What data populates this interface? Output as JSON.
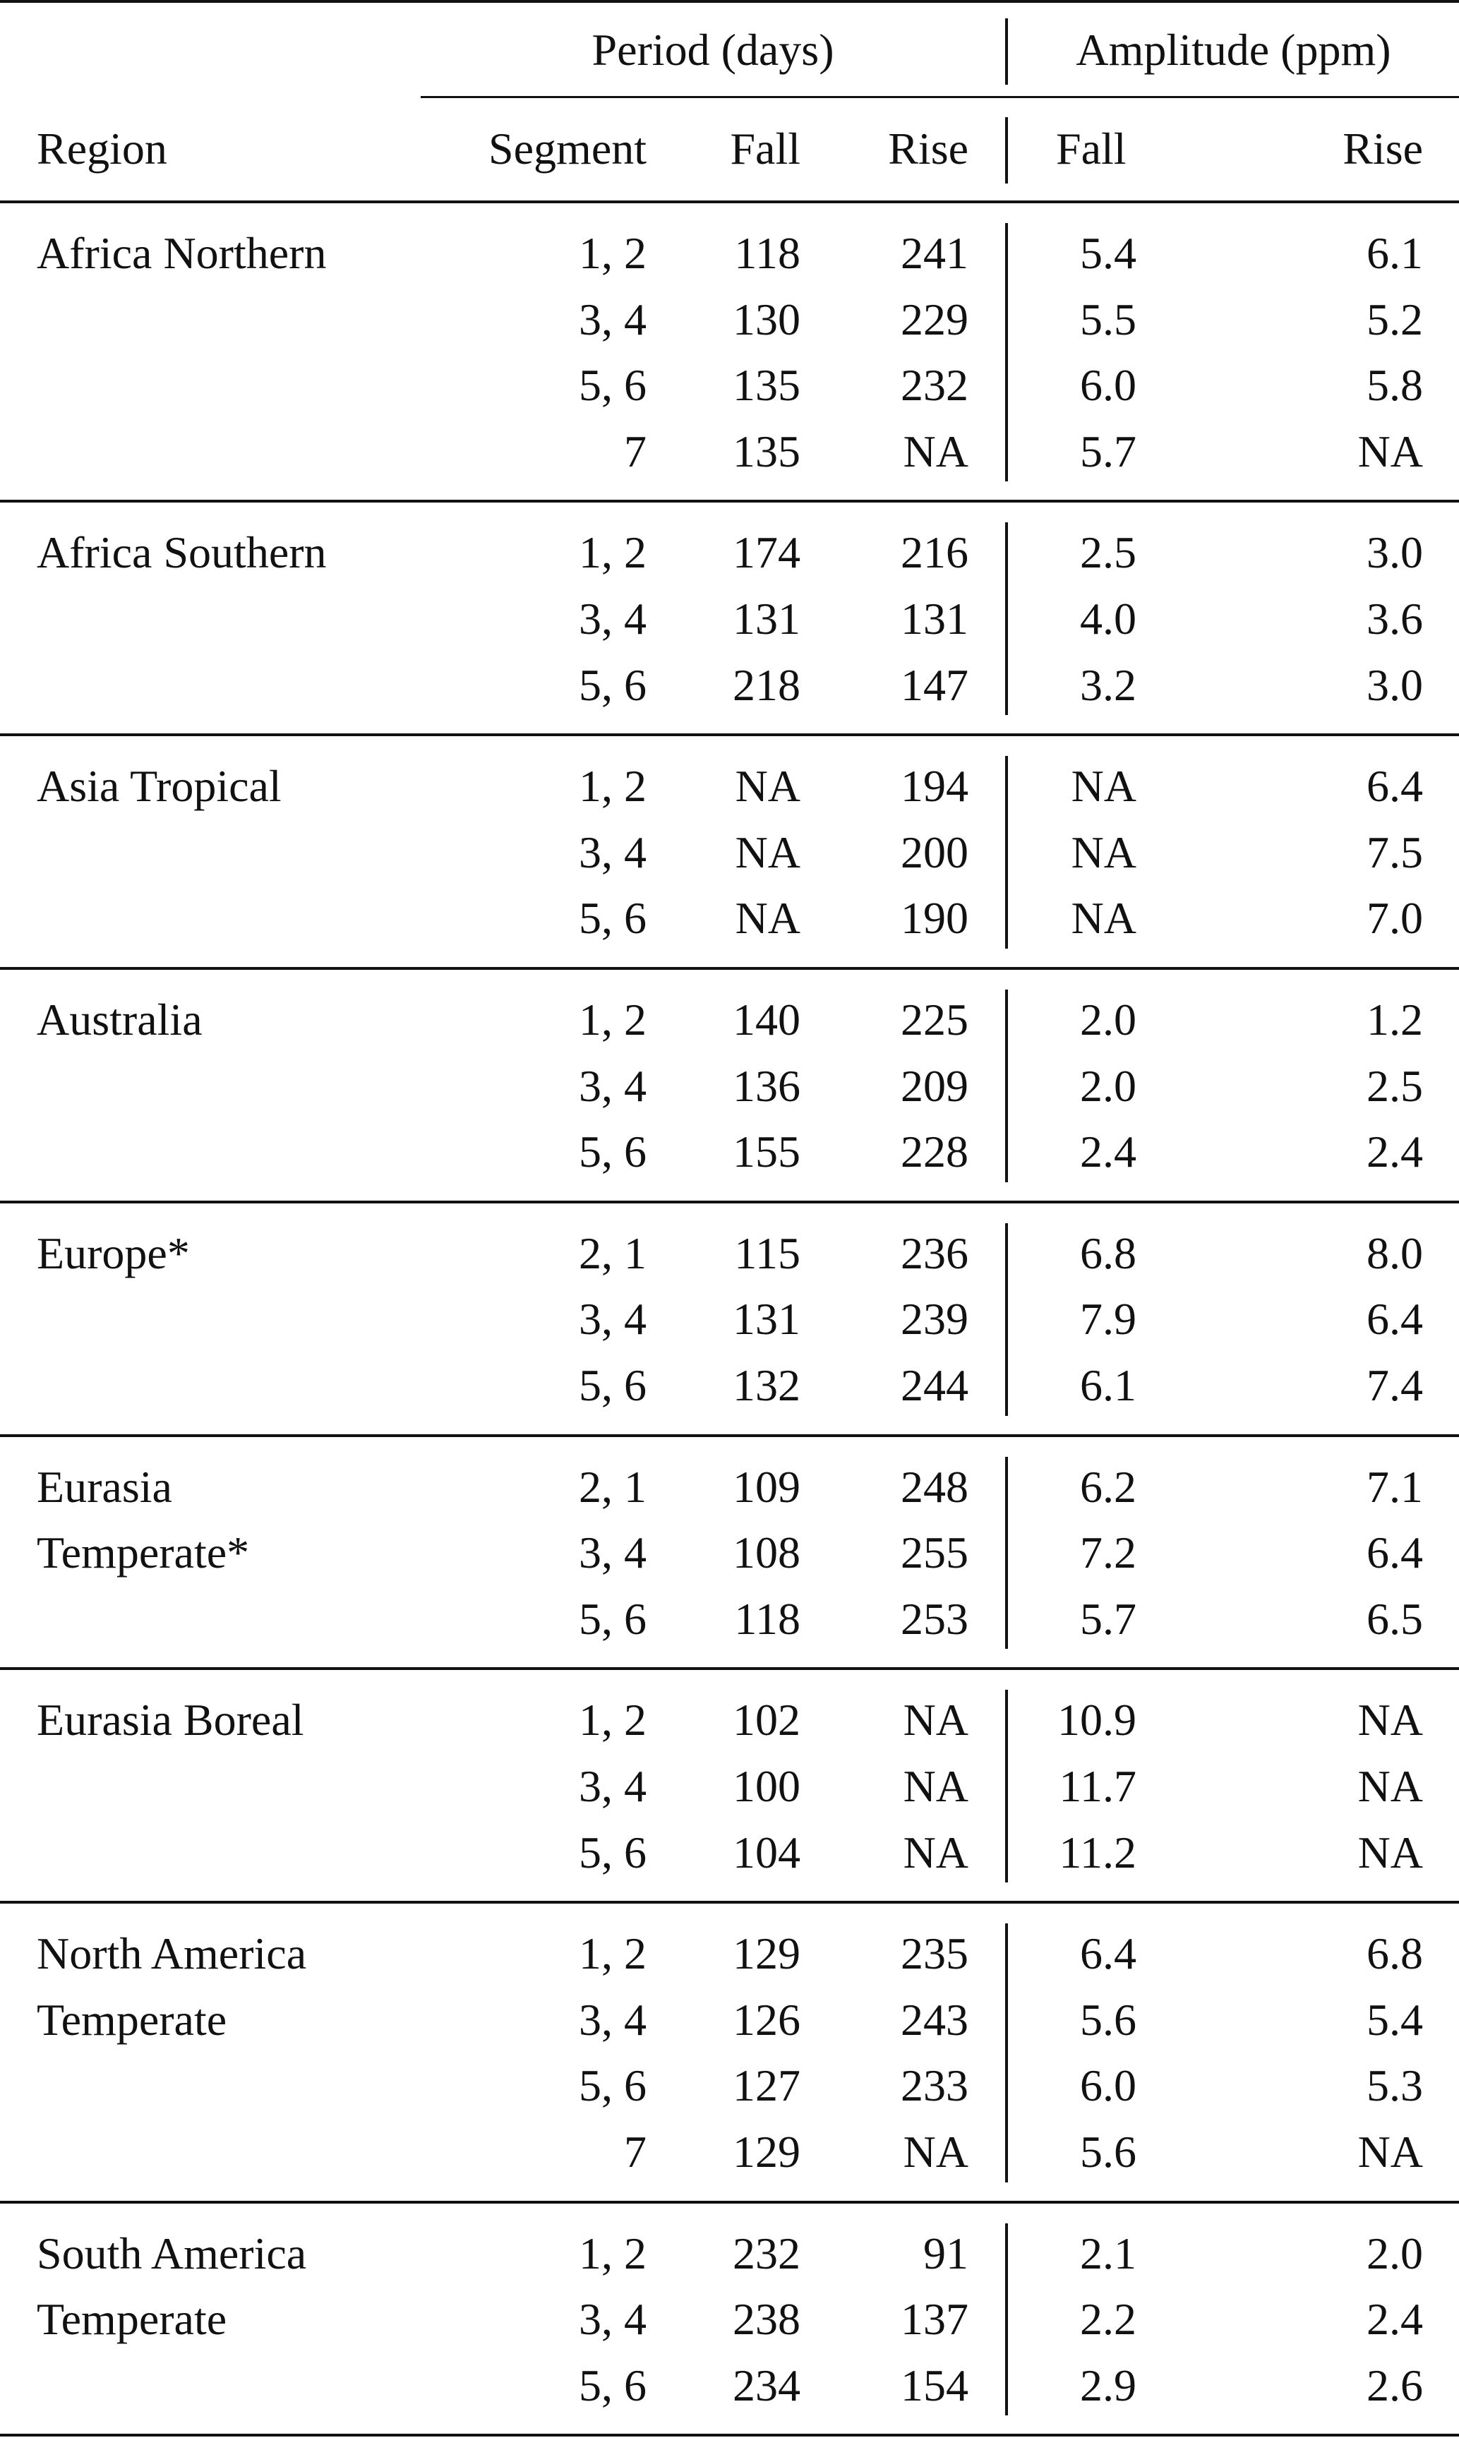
{
  "header": {
    "period_group": "Period (days)",
    "amplitude_group": "Amplitude (ppm)",
    "region": "Region",
    "segment": "Segment",
    "period_fall": "Fall",
    "period_rise": "Rise",
    "amp_fall": "Fall",
    "amp_rise": "Rise"
  },
  "groups": [
    {
      "region_lines": [
        "Africa Northern"
      ],
      "rows": [
        {
          "segment": "1, 2",
          "period_fall": "118",
          "period_rise": "241",
          "amp_fall": "5.4",
          "amp_rise": "6.1"
        },
        {
          "segment": "3, 4",
          "period_fall": "130",
          "period_rise": "229",
          "amp_fall": "5.5",
          "amp_rise": "5.2"
        },
        {
          "segment": "5, 6",
          "period_fall": "135",
          "period_rise": "232",
          "amp_fall": "6.0",
          "amp_rise": "5.8"
        },
        {
          "segment": "7",
          "period_fall": "135",
          "period_rise": "NA",
          "amp_fall": "5.7",
          "amp_rise": "NA"
        }
      ]
    },
    {
      "region_lines": [
        "Africa Southern"
      ],
      "rows": [
        {
          "segment": "1, 2",
          "period_fall": "174",
          "period_rise": "216",
          "amp_fall": "2.5",
          "amp_rise": "3.0"
        },
        {
          "segment": "3, 4",
          "period_fall": "131",
          "period_rise": "131",
          "amp_fall": "4.0",
          "amp_rise": "3.6"
        },
        {
          "segment": "5, 6",
          "period_fall": "218",
          "period_rise": "147",
          "amp_fall": "3.2",
          "amp_rise": "3.0"
        }
      ]
    },
    {
      "region_lines": [
        "Asia Tropical"
      ],
      "rows": [
        {
          "segment": "1, 2",
          "period_fall": "NA",
          "period_rise": "194",
          "amp_fall": "NA",
          "amp_rise": "6.4"
        },
        {
          "segment": "3, 4",
          "period_fall": "NA",
          "period_rise": "200",
          "amp_fall": "NA",
          "amp_rise": "7.5"
        },
        {
          "segment": "5, 6",
          "period_fall": "NA",
          "period_rise": "190",
          "amp_fall": "NA",
          "amp_rise": "7.0"
        }
      ]
    },
    {
      "region_lines": [
        "Australia"
      ],
      "rows": [
        {
          "segment": "1, 2",
          "period_fall": "140",
          "period_rise": "225",
          "amp_fall": "2.0",
          "amp_rise": "1.2"
        },
        {
          "segment": "3, 4",
          "period_fall": "136",
          "period_rise": "209",
          "amp_fall": "2.0",
          "amp_rise": "2.5"
        },
        {
          "segment": "5, 6",
          "period_fall": "155",
          "period_rise": "228",
          "amp_fall": "2.4",
          "amp_rise": "2.4"
        }
      ]
    },
    {
      "region_lines": [
        "Europe*"
      ],
      "rows": [
        {
          "segment": "2, 1",
          "period_fall": "115",
          "period_rise": "236",
          "amp_fall": "6.8",
          "amp_rise": "8.0"
        },
        {
          "segment": "3, 4",
          "period_fall": "131",
          "period_rise": "239",
          "amp_fall": "7.9",
          "amp_rise": "6.4"
        },
        {
          "segment": "5, 6",
          "period_fall": "132",
          "period_rise": "244",
          "amp_fall": "6.1",
          "amp_rise": "7.4"
        }
      ]
    },
    {
      "region_lines": [
        "Eurasia",
        "Temperate*"
      ],
      "rows": [
        {
          "segment": "2, 1",
          "period_fall": "109",
          "period_rise": "248",
          "amp_fall": "6.2",
          "amp_rise": "7.1"
        },
        {
          "segment": "3, 4",
          "period_fall": "108",
          "period_rise": "255",
          "amp_fall": "7.2",
          "amp_rise": "6.4"
        },
        {
          "segment": "5, 6",
          "period_fall": "118",
          "period_rise": "253",
          "amp_fall": "5.7",
          "amp_rise": "6.5"
        }
      ]
    },
    {
      "region_lines": [
        "Eurasia Boreal"
      ],
      "rows": [
        {
          "segment": "1, 2",
          "period_fall": "102",
          "period_rise": "NA",
          "amp_fall": "10.9",
          "amp_rise": "NA"
        },
        {
          "segment": "3, 4",
          "period_fall": "100",
          "period_rise": "NA",
          "amp_fall": "11.7",
          "amp_rise": "NA"
        },
        {
          "segment": "5, 6",
          "period_fall": "104",
          "period_rise": "NA",
          "amp_fall": "11.2",
          "amp_rise": "NA"
        }
      ]
    },
    {
      "region_lines": [
        "North America",
        "Temperate"
      ],
      "rows": [
        {
          "segment": "1, 2",
          "period_fall": "129",
          "period_rise": "235",
          "amp_fall": "6.4",
          "amp_rise": "6.8"
        },
        {
          "segment": "3, 4",
          "period_fall": "126",
          "period_rise": "243",
          "amp_fall": "5.6",
          "amp_rise": "5.4"
        },
        {
          "segment": "5, 6",
          "period_fall": "127",
          "period_rise": "233",
          "amp_fall": "6.0",
          "amp_rise": "5.3"
        },
        {
          "segment": "7",
          "period_fall": "129",
          "period_rise": "NA",
          "amp_fall": "5.6",
          "amp_rise": "NA"
        }
      ]
    },
    {
      "region_lines": [
        "South America",
        "Temperate"
      ],
      "rows": [
        {
          "segment": "1, 2",
          "period_fall": "232",
          "period_rise": "91",
          "amp_fall": "2.1",
          "amp_rise": "2.0"
        },
        {
          "segment": "3, 4",
          "period_fall": "238",
          "period_rise": "137",
          "amp_fall": "2.2",
          "amp_rise": "2.4"
        },
        {
          "segment": "5, 6",
          "period_fall": "234",
          "period_rise": "154",
          "amp_fall": "2.9",
          "amp_rise": "2.6"
        }
      ]
    }
  ]
}
